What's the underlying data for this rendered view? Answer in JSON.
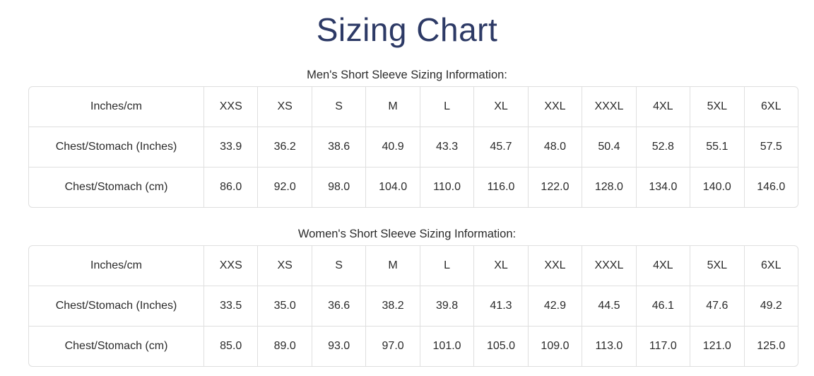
{
  "page": {
    "title": "Sizing Chart"
  },
  "sections": [
    {
      "subtitle": "Men's Short Sleeve Sizing Information:",
      "table": {
        "header": [
          "Inches/cm",
          "XXS",
          "XS",
          "S",
          "M",
          "L",
          "XL",
          "XXL",
          "XXXL",
          "4XL",
          "5XL",
          "6XL"
        ],
        "rows": [
          {
            "label": "Chest/Stomach (Inches)",
            "values": [
              "33.9",
              "36.2",
              "38.6",
              "40.9",
              "43.3",
              "45.7",
              "48.0",
              "50.4",
              "52.8",
              "55.1",
              "57.5"
            ]
          },
          {
            "label": "Chest/Stomach (cm)",
            "values": [
              "86.0",
              "92.0",
              "98.0",
              "104.0",
              "110.0",
              "116.0",
              "122.0",
              "128.0",
              "134.0",
              "140.0",
              "146.0"
            ]
          }
        ]
      }
    },
    {
      "subtitle": "Women's Short Sleeve Sizing Information:",
      "table": {
        "header": [
          "Inches/cm",
          "XXS",
          "XS",
          "S",
          "M",
          "L",
          "XL",
          "XXL",
          "XXXL",
          "4XL",
          "5XL",
          "6XL"
        ],
        "rows": [
          {
            "label": "Chest/Stomach (Inches)",
            "values": [
              "33.5",
              "35.0",
              "36.6",
              "38.2",
              "39.8",
              "41.3",
              "42.9",
              "44.5",
              "46.1",
              "47.6",
              "49.2"
            ]
          },
          {
            "label": "Chest/Stomach (cm)",
            "values": [
              "85.0",
              "89.0",
              "93.0",
              "97.0",
              "101.0",
              "105.0",
              "109.0",
              "113.0",
              "117.0",
              "121.0",
              "125.0"
            ]
          }
        ]
      }
    }
  ],
  "colors": {
    "title": "#2d3a66",
    "text": "#2b2b2b",
    "table_border": "#dfdfdf",
    "background": "#ffffff"
  }
}
